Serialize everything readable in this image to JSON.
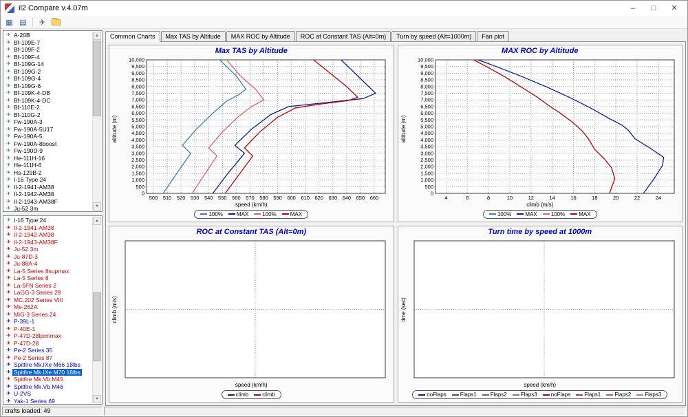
{
  "window": {
    "title": "il2 Compare v.4.07m",
    "controls": {
      "minimize": "–",
      "maximize": "□",
      "close": "✕"
    }
  },
  "toolbar": {
    "icons": [
      {
        "name": "chart-table-icon",
        "glyph": "▦",
        "color": "#336699"
      },
      {
        "name": "data-grid-icon",
        "glyph": "▤",
        "color": "#336699"
      },
      {
        "name": "separator",
        "glyph": "",
        "color": ""
      },
      {
        "name": "aircraft-icon",
        "glyph": "✈",
        "color": "#447744"
      },
      {
        "name": "folder-icon",
        "glyph": "",
        "color": "#f7d368"
      }
    ]
  },
  "sidebar": {
    "top_list": [
      "A-20B",
      "Bf-109E-7",
      "Bf-109F-2",
      "Bf-109F-4",
      "Bf-109G-14",
      "Bf-109G-2",
      "Bf-109G-4",
      "Bf-109G-6",
      "Bf-109K-4-DB",
      "Bf-109K-4-DC",
      "Bf-110E-2",
      "Bf-110G-2",
      "Fw-190A-3",
      "Fw-190A-5U17",
      "Fw-190A-5",
      "Fw-190A-8boost",
      "Fw-190D-9",
      "He-111H-16",
      "He-111H-6",
      "Hs-129B-2",
      "I-16 Type 24",
      "Il-2-1941-AM38",
      "Il-2-1942-AM38",
      "Il-2-1943-AM38F",
      "Ju-52 3m"
    ],
    "bottom_list": [
      {
        "label": "I-16 Type 24",
        "color": "#000000"
      },
      {
        "label": "Il-2-1941-AM38",
        "color": "#cc0000"
      },
      {
        "label": "Il-2-1942-AM38",
        "color": "#cc0000"
      },
      {
        "label": "Il-2-1943-AM38F",
        "color": "#cc0000"
      },
      {
        "label": "Ju-52 3m",
        "color": "#cc0000"
      },
      {
        "label": "Ju-87D-3",
        "color": "#cc0000"
      },
      {
        "label": "Ju-88A-4",
        "color": "#cc0000"
      },
      {
        "label": "La-5 Series 8supmax",
        "color": "#cc0000"
      },
      {
        "label": "La-5 Series 8",
        "color": "#cc0000"
      },
      {
        "label": "La-5FN Series 2",
        "color": "#cc0000"
      },
      {
        "label": "LaGG-3 Series 29",
        "color": "#cc0000"
      },
      {
        "label": "MC.202 Series VIII",
        "color": "#cc0000"
      },
      {
        "label": "Me-262A",
        "color": "#cc0000"
      },
      {
        "label": "MiG-3 Series 24",
        "color": "#cc0000"
      },
      {
        "label": "P-39L-1",
        "color": "#0000cc"
      },
      {
        "label": "P-40E-1",
        "color": "#cc0000"
      },
      {
        "label": "P-47D-28lprmmax",
        "color": "#cc0000"
      },
      {
        "label": "P-47D-28",
        "color": "#cc0000"
      },
      {
        "label": "Pe-2 Series 35",
        "color": "#0000cc"
      },
      {
        "label": "Pe-2 Series 87",
        "color": "#cc0000"
      },
      {
        "label": "Spitfire Mk.IXe M66 18lbs",
        "color": "#0000cc"
      },
      {
        "label": "Spitfire Mk.IXe M70 18lbs",
        "color": "#0000cc",
        "selected": true
      },
      {
        "label": "Spitfire Mk.Vb M45",
        "color": "#cc0000"
      },
      {
        "label": "Spitfire Mk.Vb M46",
        "color": "#0000cc"
      },
      {
        "label": "U-2VS",
        "color": "#0000cc"
      },
      {
        "label": "Yak-1 Series 69",
        "color": "#0000cc"
      }
    ]
  },
  "tabs": [
    {
      "label": "Common Charts",
      "active": true
    },
    {
      "label": "Max TAS by Altitude"
    },
    {
      "label": "MAX ROC by Altitude"
    },
    {
      "label": "ROC at Constant TAS (Alt=0m)"
    },
    {
      "label": "Turn by speed (Alt=1000m)"
    },
    {
      "label": "Fan plot"
    }
  ],
  "statusbar": {
    "text": "crafts loaded: 49"
  },
  "colors": {
    "accent": "#0000cc",
    "selection": "#0b61cf",
    "blue_series": "#001f9e",
    "red_series": "#c00000"
  },
  "chart_data": [
    {
      "type": "line",
      "title": "Max TAS by Altitude",
      "xlabel": "speed (km/h)",
      "ylabel": "altitude (m)",
      "xlim": [
        495,
        668
      ],
      "ylim": [
        0,
        10000
      ],
      "xticks": [
        500,
        510,
        520,
        530,
        540,
        550,
        560,
        570,
        580,
        590,
        600,
        610,
        620,
        630,
        640,
        650,
        660
      ],
      "yticks": [
        0,
        500,
        1000,
        1500,
        2000,
        2500,
        3000,
        3500,
        4000,
        4500,
        5000,
        5500,
        6000,
        6500,
        7000,
        7500,
        8000,
        8500,
        9000,
        9500,
        10000
      ],
      "legend": [
        {
          "label": "100%",
          "color": "#3f7fbf"
        },
        {
          "label": "MAX",
          "color": "#001f9e"
        },
        {
          "label": "100%",
          "color": "#e06060"
        },
        {
          "label": "MAX",
          "color": "#c00000"
        }
      ],
      "series": [
        {
          "name": "100%",
          "color": "#3f7fbf",
          "points": [
            [
              507,
              0
            ],
            [
              517,
              1500
            ],
            [
              527,
              3000
            ],
            [
              521,
              3600
            ],
            [
              531,
              4800
            ],
            [
              543,
              6000
            ],
            [
              553,
              6900
            ],
            [
              562,
              7400
            ],
            [
              567,
              7800
            ],
            [
              560,
              8800
            ],
            [
              550,
              9800
            ],
            [
              548,
              10000
            ]
          ]
        },
        {
          "name": "MAX",
          "color": "#001f9e",
          "points": [
            [
              543,
              0
            ],
            [
              554,
              1500
            ],
            [
              566,
              3000
            ],
            [
              559,
              3600
            ],
            [
              571,
              4800
            ],
            [
              585,
              5900
            ],
            [
              598,
              6500
            ],
            [
              625,
              6800
            ],
            [
              652,
              7100
            ],
            [
              661,
              7500
            ],
            [
              655,
              8100
            ],
            [
              646,
              9000
            ],
            [
              636,
              10000
            ]
          ]
        },
        {
          "name": "100%",
          "color": "#e06060",
          "points": [
            [
              528,
              0
            ],
            [
              537,
              1400
            ],
            [
              546,
              2800
            ],
            [
              540,
              3400
            ],
            [
              550,
              4600
            ],
            [
              561,
              5700
            ],
            [
              571,
              6500
            ],
            [
              580,
              7000
            ],
            [
              574,
              7800
            ],
            [
              563,
              8800
            ],
            [
              553,
              10000
            ]
          ]
        },
        {
          "name": "MAX",
          "color": "#c00000",
          "points": [
            [
              552,
              0
            ],
            [
              562,
              1400
            ],
            [
              572,
              2800
            ],
            [
              566,
              3400
            ],
            [
              577,
              4600
            ],
            [
              590,
              5700
            ],
            [
              603,
              6400
            ],
            [
              622,
              6700
            ],
            [
              641,
              6950
            ],
            [
              648,
              7200
            ],
            [
              640,
              8000
            ],
            [
              628,
              9000
            ],
            [
              616,
              10000
            ]
          ]
        }
      ]
    },
    {
      "type": "line",
      "title": "MAX ROC by Altitude",
      "xlabel": "climb (m/s)",
      "ylabel": "altitude (m)",
      "xlim": [
        3,
        25.5
      ],
      "ylim": [
        0,
        10000
      ],
      "xticks": [
        4,
        6,
        8,
        10,
        12,
        14,
        16,
        18,
        20,
        22,
        24
      ],
      "yticks": [
        0,
        500,
        1000,
        1500,
        2000,
        2500,
        3000,
        3500,
        4000,
        4500,
        5000,
        5500,
        6000,
        6500,
        7000,
        7500,
        8000,
        8500,
        9000,
        9500,
        10000
      ],
      "legend": [
        {
          "label": "100%",
          "color": "#3f7fbf"
        },
        {
          "label": "MAX",
          "color": "#001f9e"
        },
        {
          "label": "100%",
          "color": "#e06060"
        },
        {
          "label": "MAX",
          "color": "#c00000"
        }
      ],
      "series": [
        {
          "name": "MAX",
          "color": "#001f9e",
          "points": [
            [
              22.6,
              0
            ],
            [
              23.6,
              1100
            ],
            [
              24.4,
              2100
            ],
            [
              24.5,
              2700
            ],
            [
              23.2,
              3400
            ],
            [
              21.8,
              4100
            ],
            [
              21.2,
              4700
            ],
            [
              20.6,
              5100
            ],
            [
              19.4,
              5600
            ],
            [
              17.6,
              6400
            ],
            [
              15.6,
              7200
            ],
            [
              13.4,
              8000
            ],
            [
              11,
              8800
            ],
            [
              8.4,
              9600
            ],
            [
              7,
              10000
            ]
          ]
        },
        {
          "name": "MAX",
          "color": "#c00000",
          "points": [
            [
              19.4,
              0
            ],
            [
              19.9,
              1100
            ],
            [
              19.6,
              1900
            ],
            [
              18.9,
              2600
            ],
            [
              18,
              3300
            ],
            [
              17.4,
              4100
            ],
            [
              16.8,
              4700
            ],
            [
              15.8,
              5400
            ],
            [
              14.6,
              6100
            ],
            [
              13.8,
              6500
            ],
            [
              12.6,
              7200
            ],
            [
              11.2,
              7900
            ],
            [
              9.6,
              8700
            ],
            [
              7.8,
              9500
            ],
            [
              6.6,
              10000
            ]
          ]
        }
      ]
    },
    {
      "type": "line",
      "title": "ROC at Constant TAS (Alt=0m)",
      "xlabel": "speed (km/h)",
      "ylabel": "climb (m/s)",
      "xlim": [
        0,
        1
      ],
      "ylim": [
        0,
        1
      ],
      "xticks": [],
      "yticks": [],
      "legend": [
        {
          "label": "climb",
          "color": "#001f9e"
        },
        {
          "label": "climb",
          "color": "#c00000"
        }
      ],
      "series": []
    },
    {
      "type": "line",
      "title": "Turn time by speed at 1000m",
      "xlabel": "speed (km/h)",
      "ylabel": "time (sec)",
      "xlim": [
        0,
        1
      ],
      "ylim": [
        0,
        1
      ],
      "xticks": [],
      "yticks": [],
      "legend": [
        {
          "label": "noFlaps",
          "color": "#001f9e"
        },
        {
          "label": "Flaps1",
          "color": "#2a52be"
        },
        {
          "label": "Flaps2",
          "color": "#4169d0"
        },
        {
          "label": "Flaps3",
          "color": "#587fe0"
        },
        {
          "label": "noFlaps",
          "color": "#c00000"
        },
        {
          "label": "Flaps1",
          "color": "#d03030"
        },
        {
          "label": "Flaps2",
          "color": "#e05050"
        },
        {
          "label": "Flaps3",
          "color": "#f07070"
        }
      ],
      "series": []
    }
  ]
}
